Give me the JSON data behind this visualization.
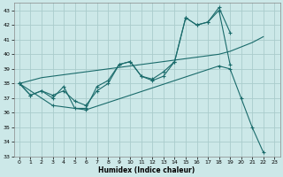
{
  "xlabel": "Humidex (Indice chaleur)",
  "background_color": "#cce8e8",
  "grid_color": "#aacccc",
  "line_color": "#1a6b6b",
  "x_values": [
    0,
    1,
    2,
    3,
    4,
    5,
    6,
    7,
    8,
    9,
    10,
    11,
    12,
    13,
    14,
    15,
    16,
    17,
    18,
    19,
    20,
    21,
    22,
    23
  ],
  "line_upper": [
    38.0,
    37.2,
    37.5,
    37.0,
    37.8,
    36.3,
    36.3,
    37.8,
    38.2,
    39.3,
    39.5,
    38.5,
    38.2,
    38.5,
    39.5,
    42.5,
    42.0,
    42.2,
    43.2,
    41.5,
    null,
    null,
    null,
    null
  ],
  "line_mid": [
    38.0,
    37.2,
    37.5,
    37.2,
    37.5,
    36.8,
    36.5,
    37.5,
    38.0,
    39.3,
    39.5,
    38.5,
    38.3,
    38.8,
    39.5,
    42.5,
    42.0,
    42.2,
    43.0,
    39.3,
    null,
    null,
    null,
    null
  ],
  "line_trend": [
    38.0,
    38.2,
    38.4,
    38.5,
    38.6,
    38.7,
    38.8,
    38.9,
    39.0,
    39.1,
    39.2,
    39.3,
    39.4,
    39.5,
    39.6,
    39.7,
    39.8,
    39.9,
    40.0,
    40.2,
    40.5,
    40.8,
    41.2,
    null
  ],
  "line_decline": [
    38.0,
    null,
    null,
    36.5,
    null,
    null,
    36.2,
    null,
    null,
    null,
    null,
    null,
    null,
    null,
    null,
    null,
    null,
    null,
    39.2,
    39.0,
    37.0,
    35.0,
    33.3,
    null
  ],
  "ylim": [
    33,
    43.5
  ],
  "xlim": [
    -0.5,
    23.5
  ],
  "yticks": [
    33,
    34,
    35,
    36,
    37,
    38,
    39,
    40,
    41,
    42,
    43
  ],
  "xticks": [
    0,
    1,
    2,
    3,
    4,
    5,
    6,
    7,
    8,
    9,
    10,
    11,
    12,
    13,
    14,
    15,
    16,
    17,
    18,
    19,
    20,
    21,
    22,
    23
  ]
}
